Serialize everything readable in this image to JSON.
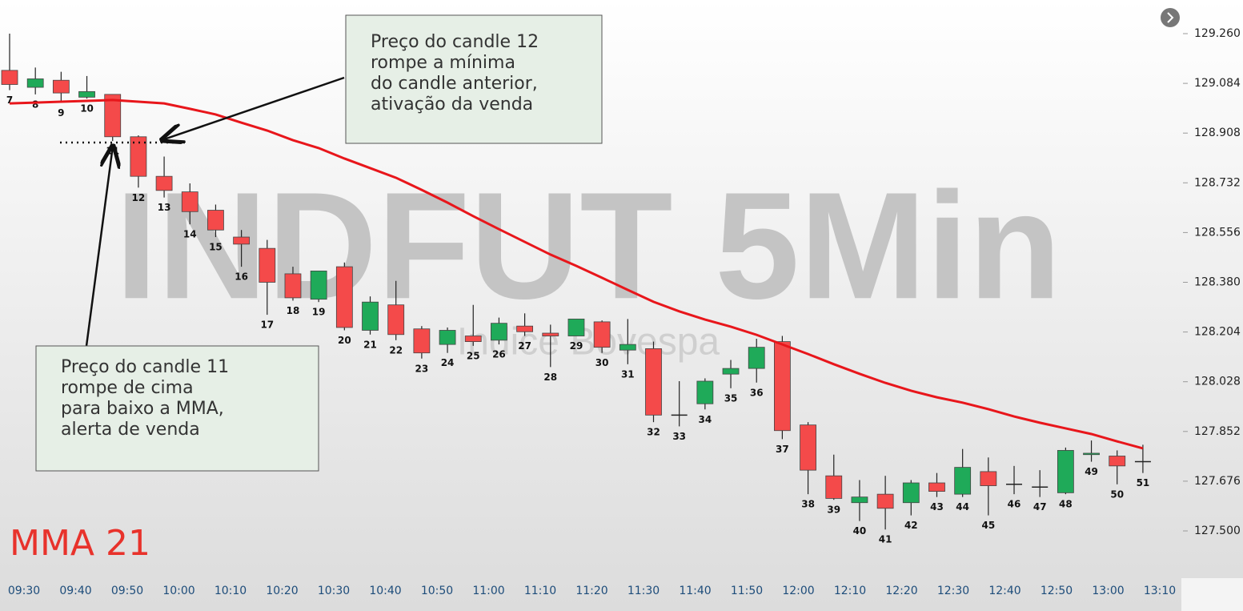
{
  "chart_data": {
    "type": "candlestick",
    "title": "INDFUT 5Min",
    "subtitle": "Indice Bovespa",
    "categories": [
      "7",
      "8",
      "9",
      "10",
      "11",
      "12",
      "13",
      "14",
      "15",
      "16",
      "17",
      "18",
      "19",
      "20",
      "21",
      "22",
      "23",
      "24",
      "25",
      "26",
      "27",
      "28",
      "29",
      "30",
      "31",
      "32",
      "33",
      "34",
      "35",
      "36",
      "37",
      "38",
      "39",
      "40",
      "41",
      "42",
      "43",
      "44",
      "45",
      "46",
      "47",
      "48",
      "49",
      "50",
      "51"
    ],
    "open": [
      129130,
      129070,
      129095,
      129035,
      129045,
      128895,
      128755,
      128700,
      128635,
      128540,
      128500,
      128410,
      128320,
      128435,
      128210,
      128300,
      128215,
      128160,
      128190,
      128175,
      128225,
      128200,
      128190,
      128240,
      128140,
      128145,
      127910,
      127950,
      128055,
      128075,
      128170,
      127875,
      127695,
      127600,
      127630,
      127600,
      127670,
      127630,
      127710,
      127665,
      127655,
      127635,
      127770,
      127765,
      127745
    ],
    "high": [
      129260,
      129140,
      129125,
      129110,
      129045,
      128900,
      128825,
      128730,
      128655,
      128565,
      128530,
      128435,
      128420,
      128450,
      128330,
      128385,
      128225,
      128220,
      128300,
      128255,
      128270,
      128230,
      128250,
      128245,
      128250,
      128170,
      128030,
      128040,
      128105,
      128180,
      128190,
      127885,
      127770,
      127680,
      127695,
      127680,
      127705,
      127790,
      127760,
      127730,
      127715,
      127795,
      127820,
      127785,
      127805
    ],
    "low": [
      129060,
      129045,
      129015,
      129030,
      128880,
      128715,
      128680,
      128585,
      128540,
      128435,
      128265,
      128315,
      128310,
      128210,
      128195,
      128175,
      128110,
      128130,
      128155,
      128160,
      128190,
      128080,
      128190,
      128130,
      128090,
      127885,
      127870,
      127930,
      128005,
      128025,
      127825,
      127630,
      127610,
      127535,
      127505,
      127555,
      127620,
      127620,
      127555,
      127630,
      127620,
      127630,
      127745,
      127665,
      127705
    ],
    "close": [
      129080,
      129100,
      129050,
      129055,
      128895,
      128755,
      128705,
      128630,
      128565,
      128515,
      128380,
      128325,
      128420,
      128220,
      128310,
      128195,
      128130,
      128210,
      128170,
      128235,
      128205,
      128190,
      128250,
      128150,
      128160,
      127910,
      127910,
      128030,
      128075,
      128150,
      127855,
      127715,
      127615,
      127620,
      127580,
      127670,
      127640,
      127725,
      127660,
      127665,
      127655,
      127785,
      127775,
      127730,
      127745
    ],
    "up_color": "#1faa59",
    "down_color": "#f44a4a",
    "series": [
      {
        "name": "MMA 21",
        "color": "#e8161b",
        "values": [
          129013,
          129016,
          129019,
          129022,
          129025,
          129019,
          129013,
          128994,
          128974,
          128945,
          128917,
          128883,
          128855,
          128818,
          128784,
          128750,
          128707,
          128662,
          128614,
          128568,
          128523,
          128478,
          128438,
          128396,
          128353,
          128311,
          128277,
          128248,
          128223,
          128194,
          128160,
          128126,
          128090,
          128056,
          128024,
          127996,
          127973,
          127954,
          127931,
          127905,
          127883,
          127863,
          127843,
          127817,
          127792
        ]
      }
    ],
    "ylim": [
      127500,
      129260
    ],
    "yticks": [
      {
        "value": 129260,
        "label": "129.260"
      },
      {
        "value": 129084,
        "label": "129.084"
      },
      {
        "value": 128908,
        "label": "128.908"
      },
      {
        "value": 128732,
        "label": "128.732"
      },
      {
        "value": 128556,
        "label": "128.556"
      },
      {
        "value": 128380,
        "label": "128.380"
      },
      {
        "value": 128204,
        "label": "128.204"
      },
      {
        "value": 128028,
        "label": "128.028"
      },
      {
        "value": 127852,
        "label": "127.852"
      },
      {
        "value": 127676,
        "label": "127.676"
      },
      {
        "value": 127500,
        "label": "127.500"
      }
    ],
    "time_labels": [
      "09:30",
      "09:40",
      "09:50",
      "10:00",
      "10:10",
      "10:20",
      "10:30",
      "10:40",
      "10:50",
      "11:00",
      "11:10",
      "11:20",
      "11:30",
      "11:40",
      "11:50",
      "12:00",
      "12:10",
      "12:20",
      "12:30",
      "12:40",
      "12:50",
      "13:00",
      "13:10"
    ],
    "annotations": [
      {
        "lines": [
          "Preço do candle 12",
          "rompe a mínima",
          "do candle anterior,",
          "ativação da venda"
        ]
      },
      {
        "lines": [
          "Preço do candle 11",
          "rompe de cima",
          "para baixo a MMA,",
          "alerta de venda"
        ]
      }
    ]
  }
}
